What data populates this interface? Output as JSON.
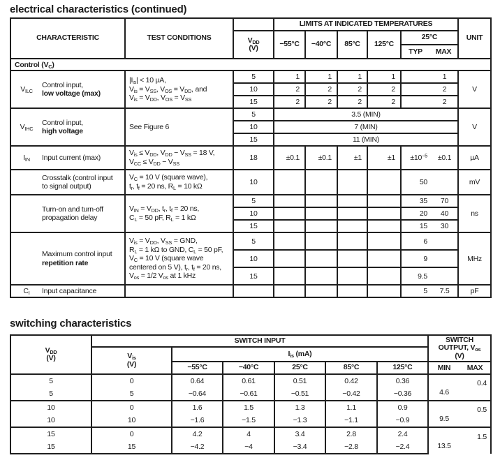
{
  "doc": {
    "title_electrical": "electrical characteristics (continued)",
    "title_switching": "switching characteristics"
  },
  "ec": {
    "header": {
      "characteristic": "CHARACTERISTIC",
      "test_conditions": "TEST CONDITIONS",
      "vdd_html": "V<sub>DD</sub><br>(V)",
      "limits": "LIMITS AT INDICATED TEMPERATURES",
      "t55": "−55°C",
      "t40": "−40°C",
      "t85": "85°C",
      "t125": "125°C",
      "t25": "25°C",
      "typ": "TYP",
      "max": "MAX",
      "unit": "UNIT"
    },
    "section_html": "Control (V<sub>C</sub>)",
    "vilc": {
      "sym_html": "V<sub>ILC</sub>",
      "desc_html": "Control input,<br><b>low voltage (max)</b>",
      "cond_html": "|I<sub>is</sub>| &lt; 10 µA,<br>V<sub>is</sub> = V<sub>SS</sub>, V<sub>OS</sub> = V<sub>DD</sub>, and<br>V<sub>is</sub> = V<sub>DD</sub>, V<sub>OS</sub> = V<sub>SS</sub>",
      "unit": "V",
      "rows": [
        {
          "vdd": "5",
          "t55": "1",
          "t40": "1",
          "t85": "1",
          "t125": "1",
          "typ": "",
          "max": "1"
        },
        {
          "vdd": "10",
          "t55": "2",
          "t40": "2",
          "t85": "2",
          "t125": "2",
          "typ": "",
          "max": "2"
        },
        {
          "vdd": "15",
          "t55": "2",
          "t40": "2",
          "t85": "2",
          "t125": "2",
          "typ": "",
          "max": "2"
        }
      ]
    },
    "vihc": {
      "sym_html": "V<sub>IHC</sub>",
      "desc_html": "Control input,<br><b>high voltage</b>",
      "cond_html": "See Figure 6",
      "unit": "V",
      "rows": [
        {
          "vdd": "5",
          "limit": "3.5 (MIN)"
        },
        {
          "vdd": "10",
          "limit": "7 (MIN)"
        },
        {
          "vdd": "15",
          "limit": "11 (MIN)"
        }
      ]
    },
    "iin": {
      "sym_html": "I<sub>IN</sub>",
      "desc_html": "Input current (max)",
      "cond_html": "V<sub>is</sub> ≤ V<sub>DD</sub>, V<sub>DD</sub> − V<sub>SS</sub> = 18 V,<br>V<sub>CC</sub> ≤ V<sub>DD</sub> − V<sub>SS</sub>",
      "unit": "µA",
      "row": {
        "vdd": "18",
        "t55": "±0.1",
        "t40": "±0.1",
        "t85": "±1",
        "t125": "±1",
        "typ_html": "±10<sup>−5</sup>",
        "max": "±0.1"
      }
    },
    "xtalk": {
      "sym_html": "",
      "desc_html": "Crosstalk (control input<br>to signal output)",
      "cond_html": "V<sub>C</sub> = 10 V (square wave),<br>t<sub>r</sub>, t<sub>f</sub> = 20 ns, R<sub>L</sub> = 10 kΩ",
      "unit": "mV",
      "row": {
        "vdd": "10",
        "typ": "50",
        "max": ""
      }
    },
    "tpd": {
      "sym_html": "",
      "desc_html": "Turn-on and turn-off<br>propagation delay",
      "cond_html": "V<sub>IN</sub> = V<sub>DD</sub>, t<sub>r</sub>, t<sub>f</sub> = 20 ns,<br>C<sub>L</sub> = 50 pF, R<sub>L</sub> = 1 kΩ",
      "unit": "ns",
      "rows": [
        {
          "vdd": "5",
          "typ": "35",
          "max": "70"
        },
        {
          "vdd": "10",
          "typ": "20",
          "max": "40"
        },
        {
          "vdd": "15",
          "typ": "15",
          "max": "30"
        }
      ]
    },
    "reprate": {
      "sym_html": "",
      "desc_html": "Maximum control input<br><b>repetition rate</b>",
      "cond_html": "V<sub>is</sub> = V<sub>DD</sub>, V<sub>SS</sub> = GND,<br>R<sub>L</sub> = 1 kΩ to GND, C<sub>L</sub> = 50 pF,<br>V<sub>C</sub> = 10 V (square wave<br>centered on 5 V), t<sub>r</sub>, t<sub>f</sub> = 20 ns,<br>V<sub>os</sub> = 1/2 V<sub>os</sub> at 1 kHz",
      "unit": "MHz",
      "rows": [
        {
          "vdd": "5",
          "typ": "6",
          "max": ""
        },
        {
          "vdd": "10",
          "typ": "9",
          "max": ""
        },
        {
          "vdd": "15",
          "typ": "9.5",
          "max": ""
        }
      ]
    },
    "ci": {
      "sym_html": "C<sub>I</sub>",
      "desc_html": "Input capacitance",
      "unit": "pF",
      "row": {
        "typ": "5",
        "max": "7.5"
      }
    }
  },
  "sw": {
    "header": {
      "vdd_html": "V<sub>DD</sub><br>(V)",
      "switch_input": "SWITCH INPUT",
      "vis_html": "V<sub>is</sub><br>(V)",
      "iis_html": "I<sub>is</sub> (mA)",
      "t55": "−55°C",
      "t40": "−40°C",
      "t25": "25°C",
      "t85": "85°C",
      "t125": "125°C",
      "output_html": "SWITCH<br>OUTPUT, V<sub>os</sub><br>(V)",
      "min": "MIN",
      "max": "MAX"
    },
    "groups": [
      {
        "r1": {
          "vdd": "5",
          "vis": "0",
          "t55": "0.64",
          "t40": "0.61",
          "t25": "0.51",
          "t85": "0.42",
          "t125": "0.36"
        },
        "r2": {
          "vdd": "5",
          "vis": "5",
          "t55": "−0.64",
          "t40": "−0.61",
          "t25": "−0.51",
          "t85": "−0.42",
          "t125": "−0.36"
        },
        "min": "4.6",
        "max": "0.4"
      },
      {
        "r1": {
          "vdd": "10",
          "vis": "0",
          "t55": "1.6",
          "t40": "1.5",
          "t25": "1.3",
          "t85": "1.1",
          "t125": "0.9"
        },
        "r2": {
          "vdd": "10",
          "vis": "10",
          "t55": "−1.6",
          "t40": "−1.5",
          "t25": "−1.3",
          "t85": "−1.1",
          "t125": "−0.9"
        },
        "min": "9.5",
        "max": "0.5"
      },
      {
        "r1": {
          "vdd": "15",
          "vis": "0",
          "t55": "4.2",
          "t40": "4",
          "t25": "3.4",
          "t85": "2.8",
          "t125": "2.4"
        },
        "r2": {
          "vdd": "15",
          "vis": "15",
          "t55": "−4.2",
          "t40": "−4",
          "t25": "−3.4",
          "t85": "−2.8",
          "t125": "−2.4"
        },
        "min": "13.5",
        "max": "1.5"
      }
    ]
  }
}
